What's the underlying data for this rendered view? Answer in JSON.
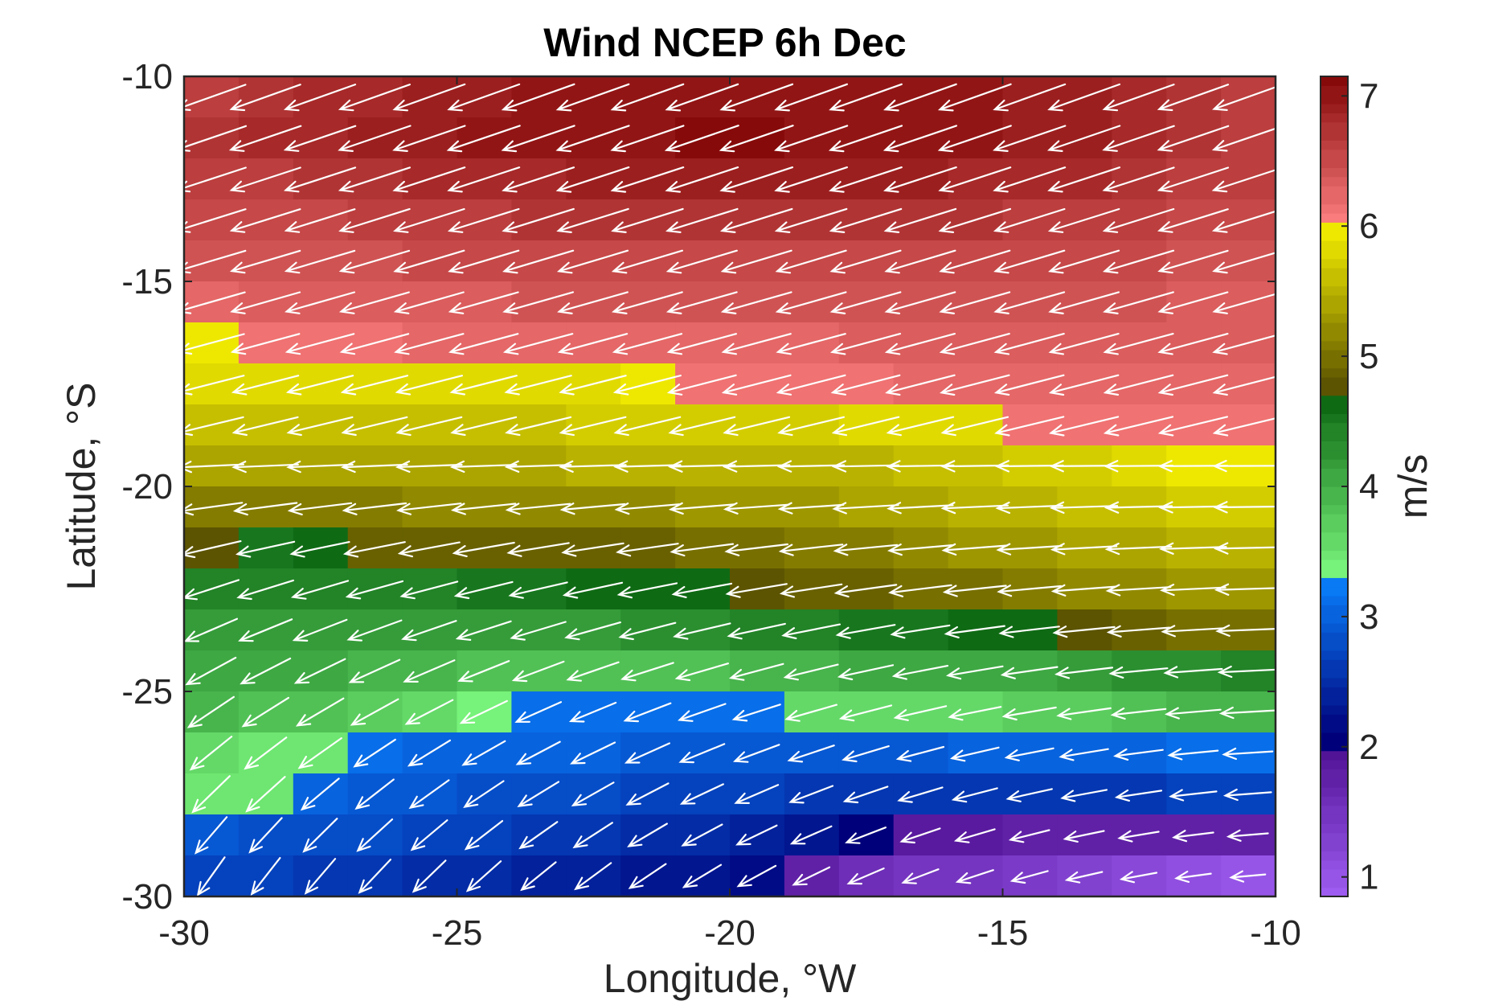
{
  "chart_data": {
    "type": "heatmap",
    "title": "Wind NCEP 6h Dec",
    "xlabel": "Longitude, °W",
    "ylabel": "Latitude, °S",
    "colorbar_label": "m/s",
    "xlim": [
      -30,
      -10
    ],
    "ylim": [
      -30,
      -10
    ],
    "xticks": [
      -30,
      -25,
      -20,
      -15,
      -10
    ],
    "yticks": [
      -30,
      -25,
      -20,
      -15,
      -10
    ],
    "xtick_labels": [
      "-30",
      "-25",
      "-20",
      "-15",
      "-10"
    ],
    "ytick_labels": [
      "-30",
      "-25",
      "-20",
      "-15",
      "-10"
    ],
    "colorbar_range": [
      0.85,
      7.15
    ],
    "colorbar_ticks": [
      "1",
      "2",
      "3",
      "4",
      "5",
      "6",
      "7"
    ],
    "colormap_levels": [
      {
        "from": 0.85,
        "to": 2.0,
        "color_low": "#9e5cf0",
        "color_high": "#4b0d8f"
      },
      {
        "from": 2.0,
        "to": 3.3,
        "color_low": "#00007a",
        "color_high": "#0a84ff"
      },
      {
        "from": 3.3,
        "to": 4.7,
        "color_low": "#77f27a",
        "color_high": "#055e0b"
      },
      {
        "from": 4.7,
        "to": 6.0,
        "color_low": "#5c5400",
        "color_high": "#fbf500"
      },
      {
        "from": 6.0,
        "to": 7.15,
        "color_low": "#fa7c7c",
        "color_high": "#7d0000"
      }
    ],
    "grid_lon": [
      -29.5,
      -28.5,
      -27.5,
      -26.5,
      -25.5,
      -24.5,
      -23.5,
      -22.5,
      -21.5,
      -20.5,
      -19.5,
      -18.5,
      -17.5,
      -16.5,
      -15.5,
      -14.5,
      -13.5,
      -12.5,
      -11.5,
      -10.5
    ],
    "grid_lat": [
      -10.5,
      -11.5,
      -12.5,
      -13.5,
      -14.5,
      -15.5,
      -16.5,
      -17.5,
      -18.5,
      -19.5,
      -20.5,
      -21.5,
      -22.5,
      -23.5,
      -24.5,
      -25.5,
      -26.5,
      -27.5,
      -28.5,
      -29.5
    ],
    "speed": [
      [
        6.6,
        6.7,
        6.8,
        6.8,
        6.9,
        6.9,
        7.0,
        7.0,
        7.0,
        7.0,
        7.0,
        7.0,
        7.0,
        7.0,
        7.0,
        6.9,
        6.9,
        6.8,
        6.7,
        6.6
      ],
      [
        6.7,
        6.8,
        6.8,
        6.9,
        6.9,
        7.0,
        7.0,
        7.0,
        7.0,
        7.1,
        7.1,
        7.0,
        7.0,
        7.0,
        7.0,
        6.9,
        6.9,
        6.8,
        6.7,
        6.6
      ],
      [
        6.6,
        6.6,
        6.7,
        6.7,
        6.8,
        6.8,
        6.8,
        6.9,
        6.9,
        6.9,
        6.9,
        6.9,
        6.9,
        6.9,
        6.8,
        6.8,
        6.8,
        6.7,
        6.6,
        6.6
      ],
      [
        6.5,
        6.5,
        6.5,
        6.6,
        6.6,
        6.6,
        6.7,
        6.7,
        6.7,
        6.7,
        6.7,
        6.7,
        6.7,
        6.7,
        6.7,
        6.6,
        6.6,
        6.6,
        6.5,
        6.5
      ],
      [
        6.4,
        6.4,
        6.4,
        6.4,
        6.5,
        6.5,
        6.5,
        6.5,
        6.5,
        6.5,
        6.5,
        6.5,
        6.5,
        6.5,
        6.5,
        6.5,
        6.5,
        6.5,
        6.4,
        6.4
      ],
      [
        6.2,
        6.3,
        6.3,
        6.3,
        6.3,
        6.3,
        6.4,
        6.4,
        6.4,
        6.4,
        6.4,
        6.4,
        6.4,
        6.4,
        6.4,
        6.4,
        6.4,
        6.4,
        6.3,
        6.3
      ],
      [
        5.9,
        6.1,
        6.1,
        6.1,
        6.2,
        6.2,
        6.2,
        6.2,
        6.2,
        6.2,
        6.2,
        6.2,
        6.3,
        6.3,
        6.3,
        6.3,
        6.3,
        6.3,
        6.3,
        6.3
      ],
      [
        5.8,
        5.8,
        5.8,
        5.8,
        5.8,
        5.8,
        5.8,
        5.8,
        5.9,
        6.1,
        6.1,
        6.1,
        6.1,
        6.2,
        6.2,
        6.2,
        6.2,
        6.2,
        6.2,
        6.2
      ],
      [
        5.6,
        5.6,
        5.6,
        5.6,
        5.6,
        5.6,
        5.6,
        5.7,
        5.7,
        5.7,
        5.7,
        5.7,
        5.8,
        5.8,
        5.8,
        6.1,
        6.1,
        6.1,
        6.1,
        6.1
      ],
      [
        5.4,
        5.4,
        5.4,
        5.4,
        5.4,
        5.4,
        5.4,
        5.5,
        5.5,
        5.5,
        5.5,
        5.5,
        5.5,
        5.6,
        5.6,
        5.7,
        5.7,
        5.8,
        5.9,
        5.9
      ],
      [
        5.1,
        5.1,
        5.1,
        5.1,
        5.2,
        5.2,
        5.2,
        5.2,
        5.2,
        5.3,
        5.3,
        5.3,
        5.4,
        5.4,
        5.5,
        5.5,
        5.6,
        5.6,
        5.7,
        5.7
      ],
      [
        4.8,
        4.5,
        4.6,
        4.9,
        4.9,
        4.9,
        4.9,
        4.9,
        4.9,
        5.0,
        5.0,
        5.1,
        5.1,
        5.2,
        5.3,
        5.3,
        5.4,
        5.4,
        5.5,
        5.5
      ],
      [
        4.4,
        4.4,
        4.4,
        4.4,
        4.4,
        4.5,
        4.5,
        4.6,
        4.6,
        4.6,
        4.8,
        4.9,
        4.9,
        5.0,
        5.0,
        5.1,
        5.2,
        5.2,
        5.3,
        5.3
      ],
      [
        4.2,
        4.2,
        4.2,
        4.2,
        4.2,
        4.2,
        4.2,
        4.2,
        4.3,
        4.3,
        4.4,
        4.4,
        4.5,
        4.5,
        4.6,
        4.6,
        4.8,
        4.9,
        5.0,
        5.0
      ],
      [
        4.1,
        4.0,
        4.0,
        3.9,
        3.9,
        3.8,
        3.8,
        3.8,
        3.8,
        3.8,
        3.9,
        3.9,
        4.0,
        4.0,
        4.1,
        4.1,
        4.2,
        4.3,
        4.3,
        4.4
      ],
      [
        3.9,
        3.8,
        3.8,
        3.7,
        3.6,
        3.4,
        3.1,
        3.1,
        3.1,
        3.1,
        3.1,
        3.6,
        3.6,
        3.6,
        3.6,
        3.7,
        3.7,
        3.8,
        3.9,
        3.9
      ],
      [
        3.6,
        3.5,
        3.5,
        3.1,
        3.0,
        3.0,
        3.0,
        3.0,
        2.9,
        2.9,
        2.9,
        2.9,
        2.9,
        2.9,
        3.0,
        3.0,
        3.0,
        3.0,
        3.1,
        3.1
      ],
      [
        3.5,
        3.5,
        3.0,
        2.9,
        2.9,
        2.8,
        2.8,
        2.8,
        2.7,
        2.7,
        2.7,
        2.6,
        2.6,
        2.6,
        2.6,
        2.6,
        2.6,
        2.6,
        2.7,
        2.7
      ],
      [
        2.9,
        2.8,
        2.8,
        2.8,
        2.7,
        2.7,
        2.6,
        2.6,
        2.5,
        2.5,
        2.4,
        2.3,
        2.1,
        1.9,
        1.9,
        1.8,
        1.8,
        1.8,
        1.8,
        1.8
      ],
      [
        2.7,
        2.7,
        2.6,
        2.6,
        2.5,
        2.5,
        2.4,
        2.4,
        2.3,
        2.3,
        2.2,
        1.8,
        1.6,
        1.5,
        1.5,
        1.4,
        1.3,
        1.2,
        1.1,
        1.0
      ]
    ]
  }
}
